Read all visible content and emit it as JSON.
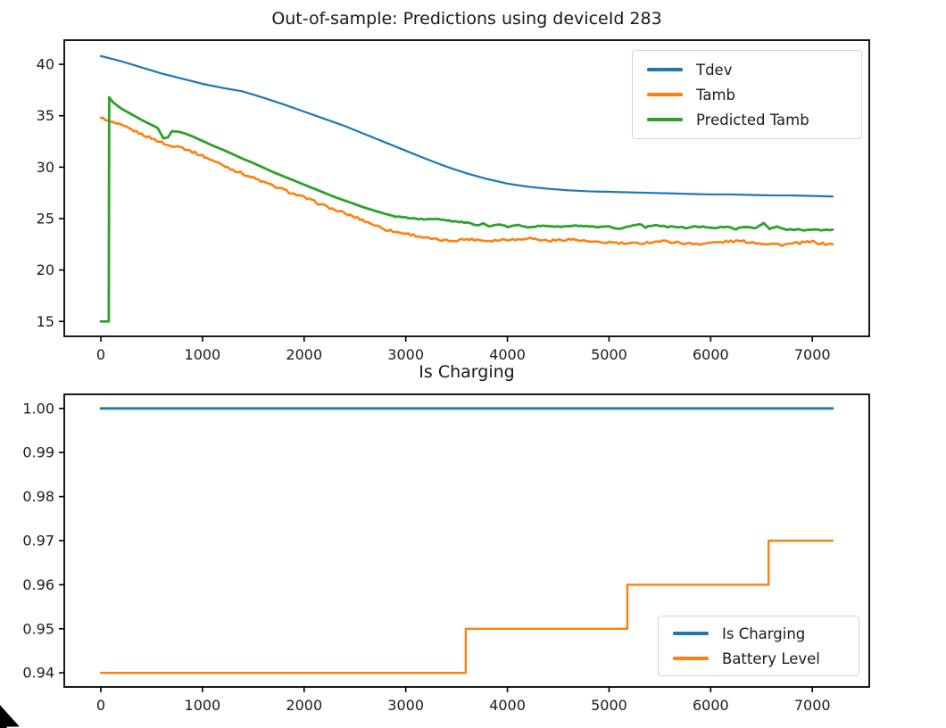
{
  "figure": {
    "background": "#ffffff",
    "axis_color": "#000000",
    "tick_label_color": "#1b1b1b",
    "legend_border_color": "#d4d4d4"
  },
  "ui": {
    "cursor": "arrow-pointer",
    "cursor_color": "#000000"
  },
  "chart_data": [
    {
      "type": "line",
      "title": "Out-of-sample: Predictions using deviceId 283",
      "xlabel": "",
      "ylabel": "",
      "grid": false,
      "legend_position": "upper right",
      "xlim": [
        -360,
        7560
      ],
      "ylim": [
        13.55,
        42.35
      ],
      "xticks": [
        0,
        1000,
        2000,
        3000,
        4000,
        5000,
        6000,
        7000
      ],
      "xtick_labels": [
        "0",
        "1000",
        "2000",
        "3000",
        "4000",
        "5000",
        "6000",
        "7000"
      ],
      "yticks": [
        15,
        20,
        25,
        30,
        35,
        40
      ],
      "ytick_labels": [
        "15",
        "20",
        "25",
        "30",
        "35",
        "40"
      ],
      "series": [
        {
          "name": "Tdev",
          "color": "#1f77b4",
          "line_width": 2.2,
          "noise": null,
          "points": [
            [
              0,
              40.8
            ],
            [
              200,
              40.3
            ],
            [
              400,
              39.7
            ],
            [
              600,
              39.1
            ],
            [
              800,
              38.6
            ],
            [
              1000,
              38.1
            ],
            [
              1200,
              37.7
            ],
            [
              1380,
              37.4
            ],
            [
              1500,
              37.05
            ],
            [
              1600,
              36.75
            ],
            [
              1800,
              36.1
            ],
            [
              2000,
              35.4
            ],
            [
              2200,
              34.7
            ],
            [
              2400,
              34.0
            ],
            [
              2600,
              33.2
            ],
            [
              2800,
              32.4
            ],
            [
              3000,
              31.6
            ],
            [
              3200,
              30.8
            ],
            [
              3400,
              30.05
            ],
            [
              3600,
              29.4
            ],
            [
              3800,
              28.85
            ],
            [
              4000,
              28.4
            ],
            [
              4200,
              28.1
            ],
            [
              4400,
              27.9
            ],
            [
              4600,
              27.75
            ],
            [
              4800,
              27.65
            ],
            [
              5000,
              27.6
            ],
            [
              5200,
              27.55
            ],
            [
              5400,
              27.5
            ],
            [
              5600,
              27.45
            ],
            [
              5800,
              27.4
            ],
            [
              6000,
              27.35
            ],
            [
              6200,
              27.35
            ],
            [
              6400,
              27.3
            ],
            [
              6600,
              27.25
            ],
            [
              6800,
              27.25
            ],
            [
              7000,
              27.2
            ],
            [
              7200,
              27.15
            ]
          ]
        },
        {
          "name": "Tamb",
          "color": "#ff7f0e",
          "line_width": 2.6,
          "noise": {
            "amp": 0.12,
            "from": 0
          },
          "points": [
            [
              0,
              34.8
            ],
            [
              100,
              34.4
            ],
            [
              200,
              34.05
            ],
            [
              300,
              33.65
            ],
            [
              400,
              33.2
            ],
            [
              500,
              32.8
            ],
            [
              600,
              32.4
            ],
            [
              650,
              32.15
            ],
            [
              700,
              32.0
            ],
            [
              750,
              32.15
            ],
            [
              800,
              31.9
            ],
            [
              900,
              31.5
            ],
            [
              1000,
              31.1
            ],
            [
              1100,
              30.65
            ],
            [
              1200,
              30.2
            ],
            [
              1300,
              29.75
            ],
            [
              1400,
              29.35
            ],
            [
              1500,
              28.95
            ],
            [
              1600,
              28.55
            ],
            [
              1700,
              28.15
            ],
            [
              1800,
              27.8
            ],
            [
              1900,
              27.4
            ],
            [
              2000,
              27.05
            ],
            [
              2100,
              26.65
            ],
            [
              2200,
              26.25
            ],
            [
              2300,
              25.85
            ],
            [
              2400,
              25.5
            ],
            [
              2500,
              25.15
            ],
            [
              2600,
              24.75
            ],
            [
              2700,
              24.35
            ],
            [
              2800,
              23.95
            ],
            [
              2900,
              23.7
            ],
            [
              3000,
              23.55
            ],
            [
              3100,
              23.35
            ],
            [
              3200,
              23.1
            ],
            [
              3300,
              22.95
            ],
            [
              3400,
              22.85
            ],
            [
              3500,
              22.9
            ],
            [
              3600,
              23.0
            ],
            [
              3700,
              22.95
            ],
            [
              3800,
              22.85
            ],
            [
              3900,
              22.9
            ],
            [
              4000,
              23.0
            ],
            [
              4100,
              22.95
            ],
            [
              4200,
              23.15
            ],
            [
              4300,
              22.95
            ],
            [
              4400,
              22.85
            ],
            [
              4500,
              22.9
            ],
            [
              4600,
              23.0
            ],
            [
              4700,
              22.9
            ],
            [
              4800,
              22.75
            ],
            [
              4900,
              22.65
            ],
            [
              5000,
              22.7
            ],
            [
              5100,
              22.6
            ],
            [
              5200,
              22.55
            ],
            [
              5300,
              22.6
            ],
            [
              5400,
              22.7
            ],
            [
              5500,
              22.8
            ],
            [
              5600,
              22.75
            ],
            [
              5700,
              22.65
            ],
            [
              5800,
              22.55
            ],
            [
              5900,
              22.55
            ],
            [
              6000,
              22.65
            ],
            [
              6100,
              22.7
            ],
            [
              6200,
              22.8
            ],
            [
              6300,
              22.8
            ],
            [
              6400,
              22.7
            ],
            [
              6500,
              22.6
            ],
            [
              6600,
              22.55
            ],
            [
              6700,
              22.45
            ],
            [
              6800,
              22.55
            ],
            [
              6900,
              22.65
            ],
            [
              7000,
              22.75
            ],
            [
              7100,
              22.55
            ],
            [
              7200,
              22.5
            ]
          ]
        },
        {
          "name": "Predicted Tamb",
          "color": "#2ca02c",
          "line_width": 2.8,
          "noise": {
            "amp": 0.06,
            "from": 2900
          },
          "points": [
            [
              0,
              15.0
            ],
            [
              78,
              15.0
            ],
            [
              82,
              36.8
            ],
            [
              120,
              36.3
            ],
            [
              200,
              35.7
            ],
            [
              300,
              35.15
            ],
            [
              400,
              34.6
            ],
            [
              500,
              34.1
            ],
            [
              560,
              33.8
            ],
            [
              615,
              32.8
            ],
            [
              660,
              32.9
            ],
            [
              700,
              33.5
            ],
            [
              760,
              33.45
            ],
            [
              820,
              33.3
            ],
            [
              900,
              33.0
            ],
            [
              1000,
              32.55
            ],
            [
              1100,
              32.1
            ],
            [
              1200,
              31.7
            ],
            [
              1300,
              31.25
            ],
            [
              1400,
              30.8
            ],
            [
              1500,
              30.4
            ],
            [
              1600,
              29.95
            ],
            [
              1700,
              29.5
            ],
            [
              1800,
              29.1
            ],
            [
              1900,
              28.7
            ],
            [
              2000,
              28.3
            ],
            [
              2100,
              27.9
            ],
            [
              2200,
              27.5
            ],
            [
              2300,
              27.1
            ],
            [
              2400,
              26.75
            ],
            [
              2500,
              26.4
            ],
            [
              2600,
              26.05
            ],
            [
              2700,
              25.75
            ],
            [
              2800,
              25.45
            ],
            [
              2900,
              25.2
            ],
            [
              3000,
              25.1
            ],
            [
              3100,
              25.0
            ],
            [
              3200,
              24.9
            ],
            [
              3300,
              25.0
            ],
            [
              3400,
              24.85
            ],
            [
              3500,
              24.7
            ],
            [
              3600,
              24.6
            ],
            [
              3700,
              24.3
            ],
            [
              3760,
              24.6
            ],
            [
              3820,
              24.2
            ],
            [
              3900,
              24.45
            ],
            [
              4000,
              24.2
            ],
            [
              4100,
              24.35
            ],
            [
              4200,
              24.2
            ],
            [
              4300,
              24.25
            ],
            [
              4400,
              24.3
            ],
            [
              4500,
              24.2
            ],
            [
              4600,
              24.25
            ],
            [
              4700,
              24.3
            ],
            [
              4800,
              24.2
            ],
            [
              4900,
              24.15
            ],
            [
              5000,
              24.2
            ],
            [
              5100,
              24.0
            ],
            [
              5200,
              24.25
            ],
            [
              5300,
              24.5
            ],
            [
              5360,
              24.15
            ],
            [
              5450,
              24.4
            ],
            [
              5550,
              24.2
            ],
            [
              5650,
              24.2
            ],
            [
              5750,
              24.1
            ],
            [
              5850,
              24.2
            ],
            [
              5950,
              24.2
            ],
            [
              6050,
              24.1
            ],
            [
              6150,
              24.2
            ],
            [
              6250,
              24.0
            ],
            [
              6350,
              24.2
            ],
            [
              6450,
              24.1
            ],
            [
              6520,
              24.55
            ],
            [
              6580,
              24.0
            ],
            [
              6650,
              24.2
            ],
            [
              6750,
              23.9
            ],
            [
              6850,
              23.95
            ],
            [
              6950,
              23.9
            ],
            [
              7050,
              23.9
            ],
            [
              7150,
              23.9
            ],
            [
              7200,
              23.9
            ]
          ]
        }
      ]
    },
    {
      "type": "line",
      "title": "Is Charging",
      "xlabel": "",
      "ylabel": "",
      "grid": false,
      "legend_position": "lower right",
      "xlim": [
        -360,
        7560
      ],
      "ylim": [
        0.9368,
        1.0032
      ],
      "xticks": [
        0,
        1000,
        2000,
        3000,
        4000,
        5000,
        6000,
        7000
      ],
      "xtick_labels": [
        "0",
        "1000",
        "2000",
        "3000",
        "4000",
        "5000",
        "6000",
        "7000"
      ],
      "yticks": [
        0.94,
        0.95,
        0.96,
        0.97,
        0.98,
        0.99,
        1.0
      ],
      "ytick_labels": [
        "0.94",
        "0.95",
        "0.96",
        "0.97",
        "0.98",
        "0.99",
        "1.00"
      ],
      "series": [
        {
          "name": "Is Charging",
          "color": "#1f77b4",
          "line_width": 2.8,
          "noise": null,
          "points": [
            [
              0,
              1.0
            ],
            [
              7200,
              1.0
            ]
          ]
        },
        {
          "name": "Battery Level",
          "color": "#ff7f0e",
          "line_width": 2.4,
          "noise": null,
          "points": [
            [
              0,
              0.94
            ],
            [
              3590,
              0.94
            ],
            [
              3590,
              0.95
            ],
            [
              5180,
              0.95
            ],
            [
              5180,
              0.96
            ],
            [
              6570,
              0.96
            ],
            [
              6570,
              0.97
            ],
            [
              7200,
              0.97
            ]
          ]
        }
      ]
    }
  ]
}
